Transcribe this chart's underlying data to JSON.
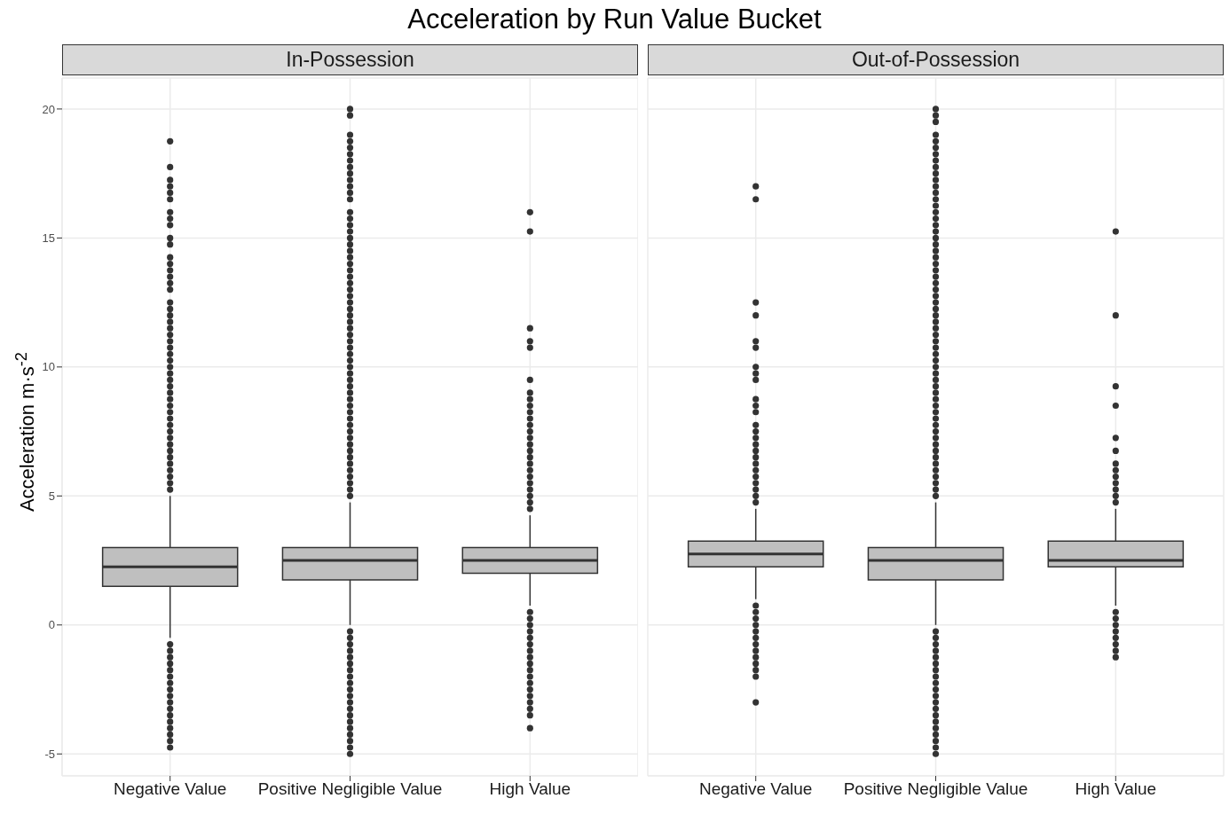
{
  "chart_data": [
    {
      "type": "box",
      "title": "Acceleration by Run Value Bucket",
      "subtitle": "In-Possession",
      "ylabel": "Acceleration m·s$^{-2}$",
      "categories": [
        "Negative Value",
        "Positive Negligible Value",
        "High Value"
      ],
      "color": "#bfbfbf",
      "ylim": [
        -5.85,
        21.2
      ],
      "yticks": [
        -5,
        0,
        5,
        10,
        15,
        20
      ],
      "grid": true,
      "boxes": [
        {
          "low": -0.5,
          "q1": 1.5,
          "median": 2.25,
          "q3": 3.0,
          "high": 5.0,
          "outliers": [
            18.75,
            17.75,
            17.25,
            17.0,
            16.75,
            16.5,
            16.0,
            15.75,
            15.5,
            15.0,
            14.75,
            14.25,
            14.0,
            13.75,
            13.5,
            13.25,
            13.0,
            12.5,
            12.25,
            12,
            11.75,
            11.5,
            11.25,
            11,
            10.75,
            10.5,
            10.25,
            10,
            9.75,
            9.5,
            9.25,
            9,
            8.75,
            8.5,
            8.25,
            8,
            7.75,
            7.5,
            7.25,
            7,
            6.75,
            6.5,
            6.25,
            6,
            5.75,
            5.5,
            5.25,
            -0.75,
            -1,
            -1.25,
            -1.5,
            -1.75,
            -2,
            -2.25,
            -2.5,
            -2.75,
            -3,
            -3.25,
            -3.5,
            -3.75,
            -4,
            -4.25,
            -4.5,
            -4.75
          ]
        },
        {
          "low": 0.0,
          "q1": 1.75,
          "median": 2.5,
          "q3": 3.0,
          "high": 4.75,
          "outliers": [
            20,
            19.75,
            19,
            18.75,
            18.5,
            18.25,
            18,
            17.75,
            17.5,
            17.25,
            17,
            16.75,
            16.5,
            16,
            15.75,
            15.5,
            15.25,
            15,
            14.75,
            14.5,
            14.25,
            14,
            13.75,
            13.5,
            13.25,
            13,
            12.75,
            12.5,
            12.25,
            12,
            11.75,
            11.5,
            11.25,
            11,
            10.75,
            10.5,
            10.25,
            10,
            9.75,
            9.5,
            9.25,
            9,
            8.75,
            8.5,
            8.25,
            8,
            7.75,
            7.5,
            7.25,
            7,
            6.75,
            6.5,
            6.25,
            6,
            5.75,
            5.5,
            5.25,
            5,
            -0.25,
            -0.5,
            -0.75,
            -1,
            -1.25,
            -1.5,
            -1.75,
            -2,
            -2.25,
            -2.5,
            -2.75,
            -3,
            -3.25,
            -3.5,
            -3.75,
            -4,
            -4.25,
            -4.5,
            -4.75,
            -5
          ]
        },
        {
          "low": 0.75,
          "q1": 2.0,
          "median": 2.5,
          "q3": 3.0,
          "high": 4.25,
          "outliers": [
            16,
            15.25,
            11.5,
            11,
            10.75,
            9.5,
            9,
            8.75,
            8.5,
            8.25,
            8,
            7.75,
            7.5,
            7.25,
            7,
            6.75,
            6.5,
            6.25,
            6,
            5.75,
            5.5,
            5.25,
            5,
            4.75,
            4.5,
            0.5,
            0.25,
            0,
            -0.25,
            -0.5,
            -0.75,
            -1,
            -1.25,
            -1.5,
            -1.75,
            -2,
            -2.25,
            -2.5,
            -2.75,
            -3,
            -3.25,
            -3.5,
            -4
          ]
        }
      ]
    },
    {
      "type": "box",
      "subtitle": "Out-of-Possession",
      "categories": [
        "Negative Value",
        "Positive Negligible Value",
        "High Value"
      ],
      "color": "#bfbfbf",
      "ylim": [
        -5.85,
        21.2
      ],
      "yticks": [
        -5,
        0,
        5,
        10,
        15,
        20
      ],
      "grid": true,
      "tick_labels": "x",
      "boxes": [
        {
          "low": 1.0,
          "q1": 2.25,
          "median": 2.75,
          "q3": 3.25,
          "high": 4.5,
          "outliers": [
            17,
            16.5,
            12.5,
            12,
            11,
            10.75,
            10,
            9.75,
            9.5,
            8.75,
            8.5,
            8.25,
            7.75,
            7.5,
            7.25,
            7,
            6.75,
            6.5,
            6.25,
            6,
            5.75,
            5.5,
            5.25,
            5,
            4.75,
            0.75,
            0.5,
            0.25,
            0,
            -0.25,
            -0.5,
            -0.75,
            -1,
            -1.25,
            -1.5,
            -1.75,
            -2,
            -3
          ]
        },
        {
          "low": 0.0,
          "q1": 1.75,
          "median": 2.5,
          "q3": 3.0,
          "high": 4.75,
          "outliers": [
            20,
            19.75,
            19.5,
            19,
            18.75,
            18.5,
            18.25,
            18,
            17.75,
            17.5,
            17.25,
            17,
            16.75,
            16.5,
            16.25,
            16,
            15.75,
            15.5,
            15.25,
            15,
            14.75,
            14.5,
            14.25,
            14,
            13.75,
            13.5,
            13.25,
            13,
            12.75,
            12.5,
            12.25,
            12,
            11.75,
            11.5,
            11.25,
            11,
            10.75,
            10.5,
            10.25,
            10,
            9.75,
            9.5,
            9.25,
            9,
            8.75,
            8.5,
            8.25,
            8,
            7.75,
            7.5,
            7.25,
            7,
            6.75,
            6.5,
            6.25,
            6,
            5.75,
            5.5,
            5.25,
            5,
            -0.25,
            -0.5,
            -0.75,
            -1,
            -1.25,
            -1.5,
            -1.75,
            -2,
            -2.25,
            -2.5,
            -2.75,
            -3,
            -3.25,
            -3.5,
            -3.75,
            -4,
            -4.25,
            -4.5,
            -4.75,
            -5
          ]
        },
        {
          "low": 0.75,
          "q1": 2.25,
          "median": 2.5,
          "q3": 3.25,
          "high": 4.5,
          "outliers": [
            15.25,
            12,
            9.25,
            8.5,
            7.25,
            6.75,
            6.25,
            6,
            5.75,
            5.5,
            5.25,
            5,
            4.75,
            0.5,
            0.25,
            0,
            -0.25,
            -0.5,
            -0.75,
            -1,
            -1.25
          ]
        }
      ]
    }
  ]
}
